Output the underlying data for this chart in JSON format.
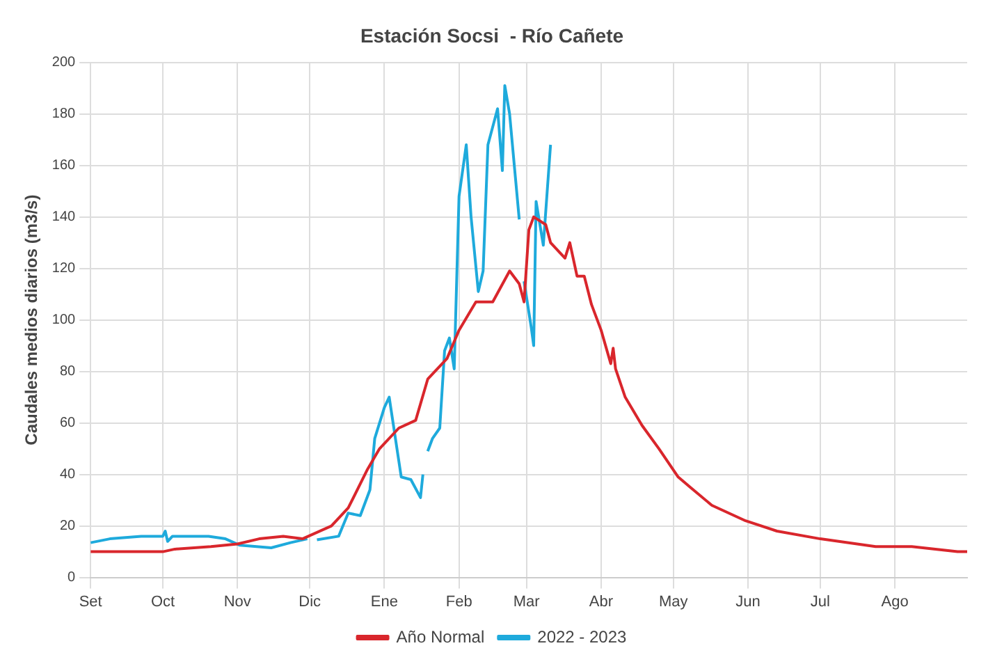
{
  "chart_data": {
    "type": "line",
    "title": "Estación Socsi  - Río Cañete",
    "ylabel": "Caudales medios diarios (m3/s)",
    "xlim": [
      "2022-09-01",
      "2023-08-31"
    ],
    "xticks": [
      {
        "value": "2022-09-01",
        "label": "Set"
      },
      {
        "value": "2022-10-01",
        "label": "Oct"
      },
      {
        "value": "2022-11-01",
        "label": "Nov"
      },
      {
        "value": "2022-12-01",
        "label": "Dic"
      },
      {
        "value": "2023-01-01",
        "label": "Ene"
      },
      {
        "value": "2023-02-01",
        "label": "Feb"
      },
      {
        "value": "2023-03-01",
        "label": "Mar"
      },
      {
        "value": "2023-04-01",
        "label": "Abr"
      },
      {
        "value": "2023-05-01",
        "label": "May"
      },
      {
        "value": "2023-06-01",
        "label": "Jun"
      },
      {
        "value": "2023-07-01",
        "label": "Jul"
      },
      {
        "value": "2023-08-01",
        "label": "Ago"
      }
    ],
    "ylim": [
      0,
      200
    ],
    "yticks": [
      0,
      20,
      40,
      60,
      80,
      100,
      120,
      140,
      160,
      180,
      200
    ],
    "grid": true,
    "legend": "bottom",
    "marker": "none",
    "line_style": "solid",
    "series": [
      {
        "name": "Año Normal",
        "color": "#d9262c",
        "x": [
          "2022-09-01",
          "2022-10-01",
          "2022-10-06",
          "2022-10-21",
          "2022-11-01",
          "2022-11-10",
          "2022-11-20",
          "2022-11-28",
          "2022-12-10",
          "2022-12-17",
          "2022-12-25",
          "2022-12-30",
          "2023-01-07",
          "2023-01-14",
          "2023-01-19",
          "2023-01-27",
          "2023-02-01",
          "2023-02-08",
          "2023-02-15",
          "2023-02-22",
          "2023-02-26",
          "2023-02-28",
          "2023-03-02",
          "2023-03-04",
          "2023-03-09",
          "2023-03-11",
          "2023-03-17",
          "2023-03-19",
          "2023-03-22",
          "2023-03-25",
          "2023-03-28",
          "2023-04-01",
          "2023-04-05",
          "2023-04-06",
          "2023-04-07",
          "2023-04-11",
          "2023-04-18",
          "2023-04-25",
          "2023-05-03",
          "2023-05-08",
          "2023-05-17",
          "2023-05-31",
          "2023-06-13",
          "2023-07-01",
          "2023-07-24",
          "2023-08-08",
          "2023-08-27",
          "2023-08-31"
        ],
        "values": [
          10,
          10,
          11,
          12,
          13,
          15,
          16,
          15,
          20,
          27,
          42,
          50,
          58,
          61,
          77,
          85,
          96,
          107,
          107,
          119,
          114,
          107,
          135,
          140,
          137,
          130,
          124,
          130,
          117,
          117,
          106,
          96,
          83,
          89,
          81,
          70,
          59,
          50,
          39,
          35,
          28,
          22,
          18,
          15,
          12,
          12,
          10,
          10
        ]
      },
      {
        "name": "2022 - 2023",
        "color": "#1eaadc",
        "x": [
          "2022-09-01",
          "2022-09-09",
          "2022-09-22",
          "2022-10-01",
          "2022-10-02",
          "2022-10-03",
          "2022-10-05",
          "2022-10-20",
          "2022-10-27",
          "2022-11-02",
          "2022-11-15",
          "2022-11-23",
          "2022-11-30",
          "2022-12-02",
          "2022-12-04",
          "2022-12-13",
          "2022-12-17",
          "2022-12-22",
          "2022-12-26",
          "2022-12-28",
          "2023-01-01",
          "2023-01-03",
          "2023-01-08",
          "2023-01-12",
          "2023-01-16",
          "2023-01-17",
          "2023-01-18",
          "2023-01-19",
          "2023-01-21",
          "2023-01-24",
          "2023-01-26",
          "2023-01-28",
          "2023-01-30",
          "2023-02-01",
          "2023-02-04",
          "2023-02-06",
          "2023-02-09",
          "2023-02-11",
          "2023-02-13",
          "2023-02-17",
          "2023-02-19",
          "2023-02-20",
          "2023-02-22",
          "2023-02-26",
          "2023-02-27",
          "2023-02-28",
          "2023-03-03",
          "2023-03-04",
          "2023-03-05",
          "2023-03-08",
          "2023-03-11"
        ],
        "values": [
          13.5,
          15,
          16,
          16,
          18,
          14,
          16,
          16,
          15,
          12.5,
          11.5,
          13.5,
          15,
          null,
          14.6,
          16,
          25,
          24,
          34,
          54,
          66,
          70,
          39,
          38,
          31,
          40,
          null,
          49,
          54,
          58,
          88,
          93,
          81,
          148,
          168,
          140,
          111,
          119,
          168,
          182,
          158,
          191,
          180,
          139,
          null,
          115,
          97,
          90,
          146,
          129,
          168
        ]
      }
    ]
  }
}
